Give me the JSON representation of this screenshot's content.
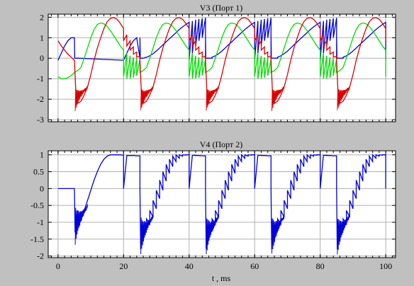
{
  "chart_data": [
    {
      "type": "line",
      "title": "V3 (Порт 1)",
      "xlabel": "",
      "ylabel": "",
      "xlim": [
        -3,
        103
      ],
      "ylim": [
        -3.1,
        2.15
      ],
      "x_ticks": [
        0,
        20,
        40,
        60,
        80,
        100
      ],
      "y_ticks": [
        2,
        1,
        0,
        -1,
        -2,
        -3
      ],
      "y_tick_labels": [
        "2",
        "1",
        "0",
        "-1",
        "-2",
        "-3"
      ],
      "grid": true,
      "period_ms": 20,
      "switch_times_ms": [
        5,
        25,
        45,
        65,
        85
      ],
      "series": [
        {
          "color": "#0000dd",
          "x": [
            0,
            1,
            2,
            3,
            4,
            5,
            5.1,
            6,
            25,
            26,
            27,
            28,
            29,
            30,
            31,
            32,
            33,
            34,
            35,
            36,
            37,
            38,
            39,
            40,
            41,
            42,
            43,
            44,
            45,
            45.1,
            46,
            47
          ],
          "values": [
            -0.1,
            0.25,
            0.6,
            0.85,
            1.0,
            1.0,
            0.0,
            0.0,
            0.0,
            0.0,
            0.05,
            0.12,
            0.22,
            0.35,
            0.5,
            0.65,
            0.8,
            0.95,
            1.1,
            1.25,
            1.4,
            1.53,
            1.65,
            1.75,
            1.82,
            1.88,
            1.92,
            1.95,
            1.97,
            0.0,
            0.0,
            0.0
          ]
        },
        {
          "color": "#00dd00",
          "x": [
            0,
            1,
            2,
            3,
            4,
            5,
            6,
            7,
            8,
            9,
            10,
            11,
            12,
            13,
            14,
            15,
            16,
            17,
            18,
            19,
            20,
            21,
            22,
            23,
            24,
            25
          ],
          "values": [
            -0.9,
            -1.0,
            -1.0,
            -0.95,
            -0.85,
            -0.7,
            -0.6,
            -0.45,
            0.0,
            0.5,
            1.0,
            1.4,
            1.65,
            1.72,
            1.68,
            1.55,
            1.35,
            1.1,
            0.85,
            0.6,
            0.4,
            0.25,
            0.12,
            0.05,
            0.0,
            -0.05
          ]
        },
        {
          "color": "#dd0000",
          "x": [
            0,
            1,
            2,
            3,
            4,
            5,
            5.5,
            6,
            7,
            8,
            9,
            10,
            11,
            12,
            13,
            14,
            15,
            16,
            17,
            18,
            19,
            20,
            21,
            22,
            23,
            24,
            25
          ],
          "values": [
            0.85,
            0.6,
            0.4,
            0.2,
            0.05,
            -0.1,
            -1.9,
            -2.2,
            -2.1,
            -1.8,
            -1.4,
            -0.8,
            -0.1,
            0.5,
            1.0,
            1.45,
            1.78,
            1.95,
            1.98,
            1.9,
            1.7,
            1.45,
            1.15,
            0.85,
            0.55,
            0.3,
            0.1
          ]
        }
      ]
    },
    {
      "type": "line",
      "title": "V4 (Порт 2)",
      "xlabel": "t , ms",
      "ylabel": "",
      "xlim": [
        -3,
        103
      ],
      "ylim": [
        -2.05,
        1.12
      ],
      "x_ticks": [
        0,
        20,
        40,
        60,
        80,
        100
      ],
      "x_tick_labels": [
        "0",
        "20",
        "40",
        "60",
        "80",
        "100"
      ],
      "y_ticks": [
        1,
        0.5,
        0,
        -0.5,
        -1,
        -1.5,
        -2
      ],
      "y_tick_labels": [
        "1",
        "0.5",
        "0",
        "-0.5",
        "-1",
        "-1.5",
        "-2"
      ],
      "grid": true,
      "switch_times_ms": [
        5,
        25,
        45,
        65,
        85
      ],
      "series": [
        {
          "color": "#0000dd",
          "x": [
            0,
            5,
            5.2,
            6,
            7,
            8,
            9,
            10,
            11,
            12,
            13,
            14,
            15,
            16,
            17,
            18,
            19,
            20,
            21,
            22,
            23,
            24,
            25,
            25.2,
            26,
            27,
            28,
            29,
            30,
            31,
            32,
            33,
            34,
            35,
            36,
            37,
            38,
            39,
            40,
            41,
            42,
            43,
            44,
            45
          ],
          "values": [
            0.0,
            0.0,
            -1.3,
            -1.1,
            -0.9,
            -0.65,
            -0.35,
            -0.05,
            0.25,
            0.5,
            0.72,
            0.87,
            0.96,
            1.0,
            1.0,
            1.0,
            1.0,
            0.99,
            0.98,
            0.98,
            0.98,
            0.97,
            0.97,
            -1.8,
            -1.45,
            -1.2,
            -1.05,
            -0.85,
            -0.6,
            -0.3,
            -0.05,
            0.22,
            0.45,
            0.65,
            0.8,
            0.9,
            0.96,
            0.99,
            1.0,
            1.0,
            0.99,
            0.98,
            0.97,
            0.97
          ]
        }
      ]
    }
  ]
}
